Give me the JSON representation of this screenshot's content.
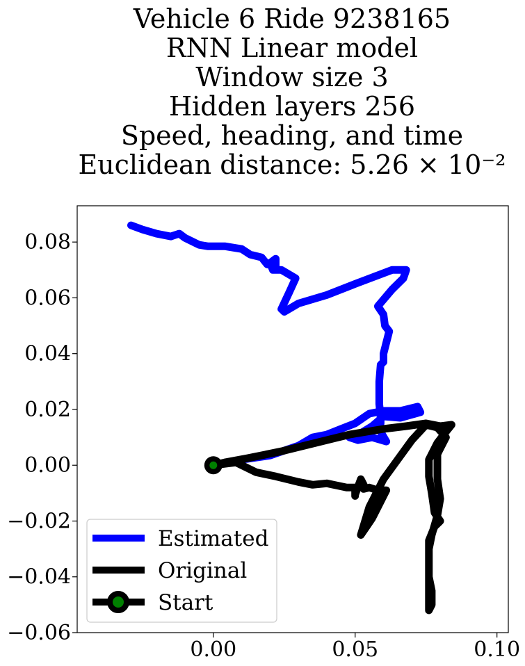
{
  "chart_data": {
    "type": "line",
    "title_lines": [
      "Vehicle 6 Ride 9238165",
      "RNN Linear model",
      "Window size 3",
      "Hidden layers 256",
      "Speed, heading, and time",
      "Euclidean distance: 5.26 × 10⁻²"
    ],
    "xlim": [
      -0.048,
      0.104
    ],
    "ylim": [
      -0.06,
      0.093
    ],
    "x_ticks": [
      0.0,
      0.05,
      0.1
    ],
    "x_tick_labels": [
      "0.00",
      "0.05",
      "0.10"
    ],
    "y_ticks": [
      0.08,
      0.06,
      0.04,
      0.02,
      0.0,
      -0.02,
      -0.04,
      -0.06
    ],
    "y_tick_labels": [
      "0.08",
      "0.06",
      "0.04",
      "0.02",
      "0.00",
      "−0.02",
      "−0.04",
      "−0.06"
    ],
    "grid": false,
    "legend_position": "lower-left",
    "series": [
      {
        "name": "Estimated",
        "color": "#0000ff",
        "points": [
          [
            0.0,
            0.0
          ],
          [
            0.01,
            0.002
          ],
          [
            0.02,
            0.0035
          ],
          [
            0.03,
            0.007
          ],
          [
            0.035,
            0.01
          ],
          [
            0.04,
            0.011
          ],
          [
            0.045,
            0.013
          ],
          [
            0.05,
            0.015
          ],
          [
            0.055,
            0.0185
          ],
          [
            0.06,
            0.0195
          ],
          [
            0.066,
            0.0195
          ],
          [
            0.072,
            0.021
          ],
          [
            0.073,
            0.019
          ],
          [
            0.066,
            0.017
          ],
          [
            0.06,
            0.0175
          ],
          [
            0.056,
            0.014
          ],
          [
            0.052,
            0.0115
          ],
          [
            0.048,
            0.01
          ],
          [
            0.051,
            0.009
          ],
          [
            0.056,
            0.01
          ],
          [
            0.061,
            0.0085
          ],
          [
            0.059,
            0.012
          ],
          [
            0.058,
            0.0135
          ],
          [
            0.059,
            0.015
          ],
          [
            0.059,
            0.017
          ],
          [
            0.0585,
            0.022
          ],
          [
            0.0585,
            0.03
          ],
          [
            0.059,
            0.036
          ],
          [
            0.06,
            0.037
          ],
          [
            0.06,
            0.04
          ],
          [
            0.061,
            0.044
          ],
          [
            0.062,
            0.048
          ],
          [
            0.0605,
            0.05
          ],
          [
            0.06,
            0.054
          ],
          [
            0.058,
            0.057
          ],
          [
            0.063,
            0.063
          ],
          [
            0.067,
            0.067
          ],
          [
            0.068,
            0.07
          ],
          [
            0.063,
            0.07
          ],
          [
            0.05,
            0.065
          ],
          [
            0.04,
            0.061
          ],
          [
            0.03,
            0.058
          ],
          [
            0.025,
            0.055
          ],
          [
            0.024,
            0.056
          ],
          [
            0.027,
            0.0625
          ],
          [
            0.029,
            0.067
          ],
          [
            0.024,
            0.07
          ],
          [
            0.021,
            0.07
          ],
          [
            0.02,
            0.0725
          ],
          [
            0.022,
            0.074
          ],
          [
            0.022,
            0.0715
          ],
          [
            0.019,
            0.072
          ],
          [
            0.017,
            0.0745
          ],
          [
            0.013,
            0.0755
          ],
          [
            0.01,
            0.0775
          ],
          [
            0.004,
            0.0785
          ],
          [
            -0.002,
            0.0785
          ],
          [
            -0.005,
            0.079
          ],
          [
            -0.01,
            0.0815
          ],
          [
            -0.012,
            0.083
          ],
          [
            -0.015,
            0.082
          ],
          [
            -0.02,
            0.083
          ],
          [
            -0.025,
            0.0845
          ],
          [
            -0.029,
            0.086
          ]
        ]
      },
      {
        "name": "Original",
        "color": "#000000",
        "points": [
          [
            0.0,
            0.0
          ],
          [
            0.008,
            0.001
          ],
          [
            0.015,
            -0.0025
          ],
          [
            0.022,
            -0.004
          ],
          [
            0.03,
            -0.006
          ],
          [
            0.035,
            -0.007
          ],
          [
            0.04,
            -0.0065
          ],
          [
            0.047,
            -0.008
          ],
          [
            0.05,
            -0.008
          ],
          [
            0.05,
            -0.011
          ],
          [
            0.05,
            -0.0105
          ],
          [
            0.052,
            -0.005
          ],
          [
            0.053,
            -0.007
          ],
          [
            0.053,
            -0.0085
          ],
          [
            0.055,
            -0.008
          ],
          [
            0.058,
            -0.009
          ],
          [
            0.061,
            -0.009
          ],
          [
            0.058,
            -0.015
          ],
          [
            0.056,
            -0.019
          ],
          [
            0.054,
            -0.022
          ],
          [
            0.052,
            -0.025
          ],
          [
            0.055,
            -0.015
          ],
          [
            0.06,
            -0.005
          ],
          [
            0.065,
            0.002
          ],
          [
            0.07,
            0.009
          ],
          [
            0.075,
            0.0145
          ],
          [
            0.079,
            0.0135
          ],
          [
            0.082,
            0.01
          ],
          [
            0.079,
            0.004
          ],
          [
            0.079,
            -0.005
          ],
          [
            0.08,
            -0.012
          ],
          [
            0.079,
            -0.018
          ],
          [
            0.077,
            -0.025
          ],
          [
            0.076,
            -0.03
          ],
          [
            0.076,
            -0.04
          ],
          [
            0.077,
            -0.045
          ],
          [
            0.077,
            -0.05
          ],
          [
            0.076,
            -0.052
          ],
          [
            0.076,
            -0.045
          ],
          [
            0.076,
            -0.036
          ],
          [
            0.076,
            -0.027
          ],
          [
            0.078,
            -0.022
          ],
          [
            0.08,
            -0.02
          ],
          [
            0.078,
            -0.017
          ],
          [
            0.077,
            -0.01
          ],
          [
            0.076,
            -0.004
          ],
          [
            0.076,
            0.002
          ],
          [
            0.079,
            0.008
          ],
          [
            0.082,
            0.012
          ],
          [
            0.084,
            0.0145
          ],
          [
            0.08,
            0.014
          ],
          [
            0.075,
            0.015
          ],
          [
            0.068,
            0.014
          ],
          [
            0.06,
            0.013
          ],
          [
            0.048,
            0.011
          ],
          [
            0.036,
            0.008
          ],
          [
            0.024,
            0.005
          ],
          [
            0.012,
            0.0025
          ],
          [
            0.004,
            0.001
          ],
          [
            0.0,
            0.0
          ]
        ]
      }
    ],
    "start": {
      "name": "Start",
      "x": 0.0,
      "y": 0.0,
      "marker_color": "#008000",
      "edge_color": "#000000"
    }
  }
}
